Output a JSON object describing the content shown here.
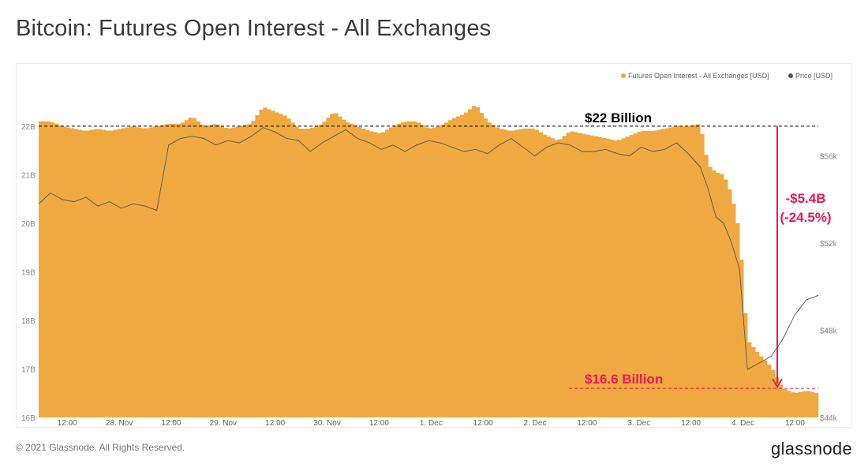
{
  "page": {
    "title": "Bitcoin: Futures Open Interest - All Exchanges",
    "copyright": "© 2021 Glassnode. All Rights Reserved.",
    "brand": "glassnode",
    "watermark": "glassnode"
  },
  "chart_data": {
    "type": "area",
    "title": "Bitcoin: Futures Open Interest - All Exchanges",
    "x_tick_labels": [
      "12:00",
      "28. Nov",
      "12:00",
      "29. Nov",
      "12:00",
      "30. Nov",
      "12:00",
      "1. Dec",
      "12:00",
      "2. Dec",
      "12:00",
      "3. Dec",
      "12:00",
      "4. Dec",
      "12:00"
    ],
    "y_left_ticks": [
      "16B",
      "17B",
      "18B",
      "19B",
      "20B",
      "21B",
      "22B"
    ],
    "y_right_ticks": [
      "$44k",
      "$48k",
      "$52k",
      "$56k"
    ],
    "ylim_left": [
      16,
      22.6
    ],
    "ylim_right": [
      44,
      58.7
    ],
    "grid": false,
    "legend_position": "top-right",
    "series": [
      {
        "name": "Futures Open Interest - All Exchanges [USD]",
        "axis": "left",
        "color": "#f0a940",
        "x": [
          0,
          3,
          6,
          9,
          12,
          15,
          18,
          21,
          24,
          27,
          30,
          33,
          36,
          39,
          42,
          45,
          48,
          51,
          54,
          57,
          60,
          63,
          66,
          69,
          72,
          75,
          78,
          81,
          84,
          87,
          90,
          93,
          96,
          99,
          102,
          105,
          108,
          111,
          114,
          117,
          120,
          123,
          126,
          129,
          132,
          135,
          138,
          141,
          144,
          147,
          150,
          153,
          156,
          159,
          162,
          165,
          168,
          170,
          172,
          174,
          176,
          178,
          180,
          183,
          186,
          189,
          192,
          195,
          198
        ],
        "values": [
          22.1,
          22.1,
          22.0,
          21.95,
          21.9,
          21.95,
          21.9,
          21.95,
          22.0,
          21.95,
          22.0,
          22.05,
          22.05,
          22.2,
          22.0,
          22.05,
          21.95,
          22.0,
          22.05,
          22.4,
          22.3,
          22.2,
          21.95,
          21.95,
          22.05,
          22.3,
          22.1,
          22.0,
          21.9,
          21.85,
          22.0,
          22.1,
          22.1,
          21.95,
          22.0,
          22.15,
          22.25,
          22.45,
          22.1,
          21.95,
          21.9,
          21.95,
          21.95,
          21.8,
          21.7,
          21.9,
          21.85,
          21.8,
          21.75,
          21.7,
          21.8,
          21.9,
          21.9,
          21.95,
          22.0,
          22.0,
          22.05,
          21.2,
          21.05,
          21.0,
          20.6,
          19.8,
          17.6,
          17.3,
          17.05,
          16.6,
          16.5,
          16.55,
          16.5
        ],
        "annotations": [
          "$22 Billion",
          "$16.6 Billion"
        ]
      },
      {
        "name": "Price [USD]",
        "axis": "right",
        "color": "#555555",
        "x": [
          0,
          3,
          6,
          9,
          12,
          15,
          18,
          21,
          24,
          27,
          30,
          33,
          36,
          39,
          42,
          45,
          48,
          51,
          54,
          57,
          60,
          63,
          66,
          69,
          72,
          75,
          78,
          81,
          84,
          87,
          90,
          93,
          96,
          99,
          102,
          105,
          108,
          111,
          114,
          117,
          120,
          123,
          126,
          129,
          132,
          135,
          138,
          141,
          144,
          147,
          150,
          153,
          156,
          159,
          162,
          165,
          168,
          170,
          172,
          174,
          176,
          178,
          180,
          183,
          186,
          189,
          192,
          195,
          198
        ],
        "values": [
          53.8,
          54.3,
          54.0,
          53.9,
          54.1,
          53.7,
          53.9,
          53.6,
          53.8,
          53.7,
          53.5,
          56.5,
          56.8,
          56.9,
          56.8,
          56.5,
          56.7,
          56.6,
          56.9,
          57.3,
          57.1,
          56.8,
          56.7,
          56.2,
          56.6,
          56.9,
          57.2,
          56.8,
          56.6,
          56.3,
          56.5,
          56.2,
          56.5,
          56.7,
          56.6,
          56.4,
          56.2,
          56.3,
          56.1,
          56.5,
          56.8,
          56.4,
          56.0,
          56.4,
          56.6,
          56.5,
          56.2,
          56.2,
          56.3,
          56.1,
          56.0,
          56.4,
          56.2,
          56.3,
          56.6,
          56.1,
          55.5,
          54.5,
          53.2,
          52.9,
          52.0,
          50.8,
          46.2,
          46.5,
          46.8,
          47.6,
          48.7,
          49.4,
          49.6
        ],
        "annotations": [
          "-$5.4B",
          "(-24.5%)"
        ]
      }
    ]
  }
}
